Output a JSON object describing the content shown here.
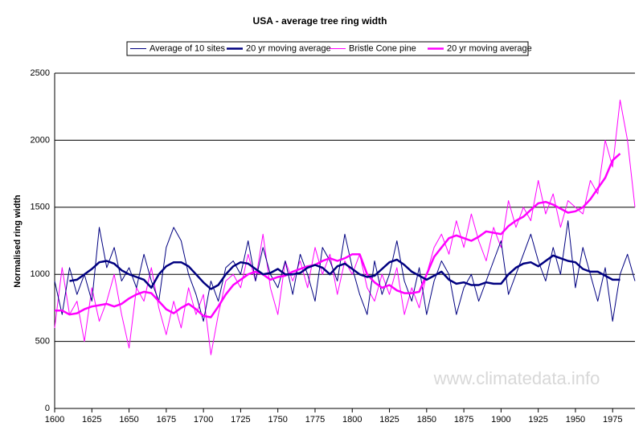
{
  "chart_data": {
    "type": "line",
    "title": "USA - average tree ring width",
    "y_label": "Normalised ring width",
    "annotation": "www.climatedata.info",
    "xlim": [
      1600,
      1990
    ],
    "xticks": [
      1600,
      1625,
      1650,
      1675,
      1700,
      1725,
      1750,
      1775,
      1800,
      1825,
      1850,
      1875,
      1900,
      1925,
      1950,
      1975
    ],
    "ylim": [
      0,
      2500
    ],
    "yticks": [
      0,
      500,
      1000,
      1500,
      2000,
      2500
    ],
    "grid": true,
    "legend": "top",
    "x": [
      1600,
      1605,
      1610,
      1615,
      1620,
      1625,
      1630,
      1635,
      1640,
      1645,
      1650,
      1655,
      1660,
      1665,
      1670,
      1675,
      1680,
      1685,
      1690,
      1695,
      1700,
      1705,
      1710,
      1715,
      1720,
      1725,
      1730,
      1735,
      1740,
      1745,
      1750,
      1755,
      1760,
      1765,
      1770,
      1775,
      1780,
      1785,
      1790,
      1795,
      1800,
      1805,
      1810,
      1815,
      1820,
      1825,
      1830,
      1835,
      1840,
      1845,
      1850,
      1855,
      1860,
      1865,
      1870,
      1875,
      1880,
      1885,
      1890,
      1895,
      1900,
      1905,
      1910,
      1915,
      1920,
      1925,
      1930,
      1935,
      1940,
      1945,
      1950,
      1955,
      1960,
      1965,
      1970,
      1975,
      1980,
      1985,
      1990
    ],
    "series": [
      {
        "name": "Average of 10 sites",
        "color": "#000080",
        "values": [
          950,
          700,
          1050,
          850,
          1000,
          800,
          1350,
          1050,
          1200,
          950,
          1050,
          900,
          1150,
          950,
          800,
          1200,
          1350,
          1250,
          1000,
          850,
          650,
          950,
          800,
          1050,
          1100,
          1000,
          1250,
          950,
          1200,
          1000,
          900,
          1100,
          850,
          1150,
          1000,
          800,
          1200,
          1100,
          950,
          1300,
          1050,
          850,
          700,
          1100,
          850,
          1000,
          1250,
          950,
          800,
          1050,
          700,
          950,
          1100,
          1000,
          700,
          900,
          1000,
          800,
          950,
          1100,
          1250,
          850,
          1000,
          1150,
          1300,
          1100,
          950,
          1200,
          1000,
          1400,
          900,
          1200,
          1000,
          800,
          1050,
          650,
          1000,
          1150,
          950
        ]
      },
      {
        "name": "20 yr moving average",
        "color": "#000080",
        "values": [
          null,
          null,
          950,
          960,
          1000,
          1040,
          1090,
          1100,
          1080,
          1030,
          1000,
          980,
          960,
          900,
          1000,
          1060,
          1090,
          1090,
          1060,
          1000,
          940,
          890,
          920,
          1000,
          1060,
          1090,
          1080,
          1040,
          1000,
          1010,
          1040,
          1000,
          1000,
          1010,
          1050,
          1070,
          1050,
          1000,
          1060,
          1080,
          1040,
          1000,
          980,
          990,
          1040,
          1090,
          1110,
          1070,
          1020,
          990,
          960,
          990,
          1020,
          960,
          930,
          940,
          920,
          920,
          940,
          930,
          930,
          1000,
          1050,
          1080,
          1090,
          1060,
          1100,
          1140,
          1120,
          1100,
          1090,
          1040,
          1020,
          1020,
          990,
          960,
          960,
          null,
          null
        ]
      },
      {
        "name": "Bristle Cone pine",
        "color": "#ff00ff",
        "values": [
          600,
          1050,
          700,
          800,
          500,
          900,
          650,
          800,
          1000,
          700,
          450,
          900,
          800,
          1050,
          750,
          550,
          800,
          600,
          900,
          700,
          850,
          400,
          700,
          950,
          1000,
          900,
          1150,
          950,
          1300,
          900,
          700,
          1100,
          950,
          1100,
          900,
          1200,
          1000,
          1150,
          850,
          1100,
          1000,
          1150,
          900,
          800,
          1000,
          850,
          1050,
          700,
          900,
          750,
          1000,
          1200,
          1300,
          1150,
          1400,
          1200,
          1450,
          1250,
          1100,
          1350,
          1200,
          1550,
          1350,
          1500,
          1400,
          1700,
          1450,
          1600,
          1350,
          1550,
          1500,
          1450,
          1700,
          1600,
          2000,
          1800,
          2300,
          2000,
          1500
        ]
      },
      {
        "name": "20 yr moving average",
        "color": "#ff00ff",
        "values": [
          730,
          730,
          700,
          710,
          740,
          760,
          770,
          780,
          760,
          780,
          820,
          850,
          870,
          860,
          800,
          740,
          710,
          750,
          780,
          740,
          690,
          680,
          760,
          850,
          920,
          960,
          1000,
          1020,
          1000,
          960,
          980,
          990,
          1020,
          1040,
          1060,
          1070,
          1100,
          1120,
          1100,
          1120,
          1150,
          1150,
          1000,
          940,
          900,
          920,
          880,
          860,
          860,
          870,
          1000,
          1130,
          1200,
          1270,
          1290,
          1270,
          1250,
          1280,
          1320,
          1310,
          1300,
          1360,
          1400,
          1430,
          1480,
          1530,
          1540,
          1520,
          1490,
          1460,
          1470,
          1500,
          1560,
          1640,
          1720,
          1850,
          1900,
          null,
          null
        ]
      }
    ]
  }
}
